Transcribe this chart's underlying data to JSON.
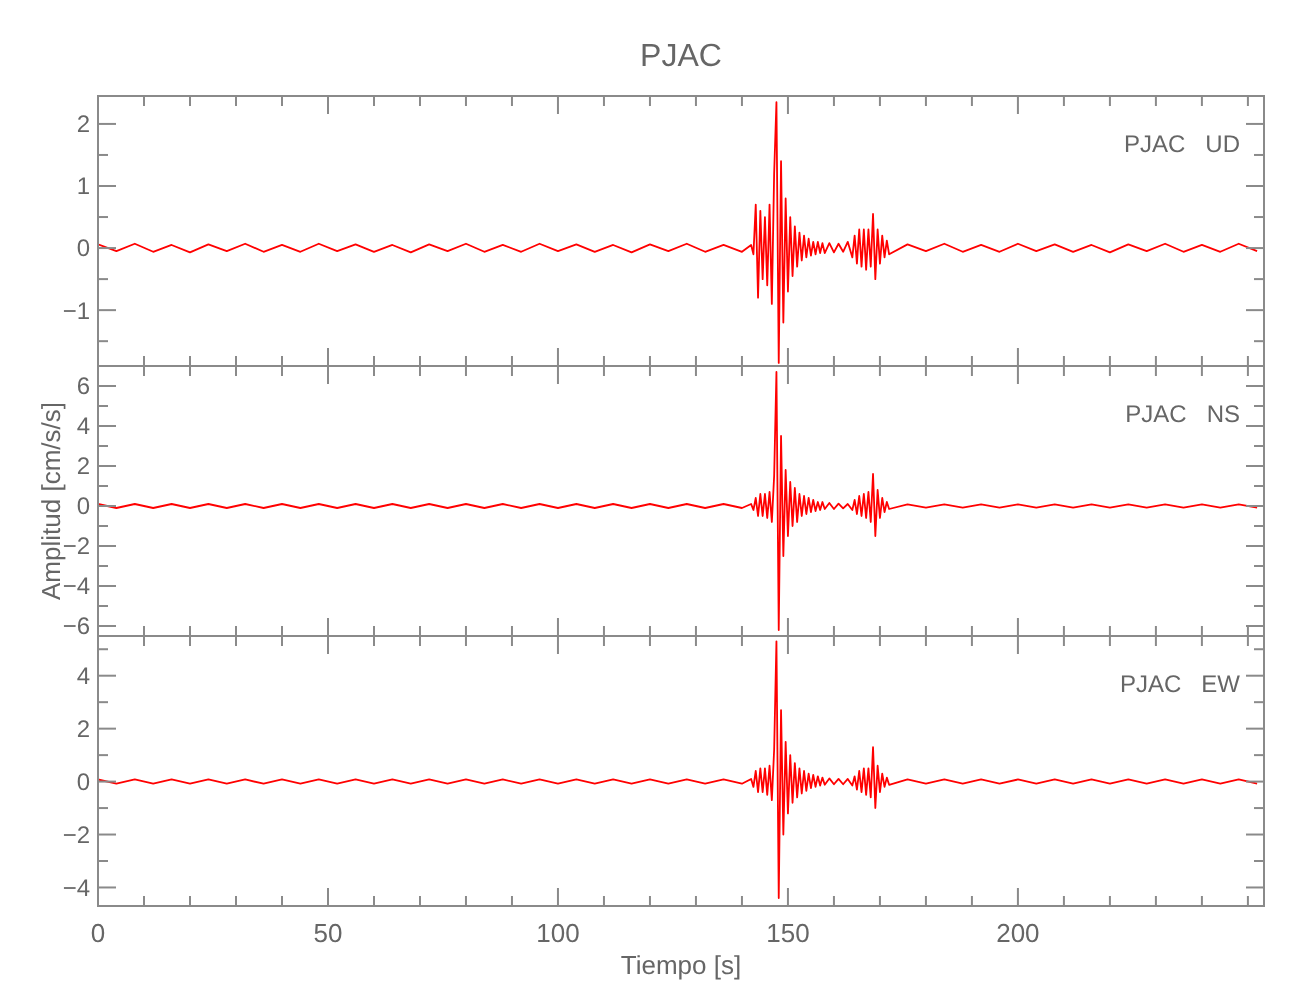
{
  "chart_data": [
    {
      "type": "line",
      "title": "PJAC",
      "annotations": [
        "PJAC   UD"
      ],
      "tick_labels": "y",
      "xlim": [
        0,
        253.5
      ],
      "xticks": [
        0,
        {
          "value": 10,
          "label": null
        },
        {
          "value": 20,
          "label": null
        },
        {
          "value": 30,
          "label": null
        },
        {
          "value": 40,
          "label": null
        },
        50,
        {
          "value": 60,
          "label": null
        },
        {
          "value": 70,
          "label": null
        },
        {
          "value": 80,
          "label": null
        },
        {
          "value": 90,
          "label": null
        },
        100,
        {
          "value": 110,
          "label": null
        },
        {
          "value": 120,
          "label": null
        },
        {
          "value": 130,
          "label": null
        },
        {
          "value": 140,
          "label": null
        },
        150,
        {
          "value": 160,
          "label": null
        },
        {
          "value": 170,
          "label": null
        },
        {
          "value": 180,
          "label": null
        },
        {
          "value": 190,
          "label": null
        },
        200,
        {
          "value": 210,
          "label": null
        },
        {
          "value": 220,
          "label": null
        },
        {
          "value": 230,
          "label": null
        },
        {
          "value": 240,
          "label": null
        },
        {
          "value": 250,
          "label": null
        }
      ],
      "ylim": [
        -1.9,
        2.45
      ],
      "yticks": [
        {
          "value": -1.5,
          "label": null
        },
        -1,
        {
          "value": -0.5,
          "label": null
        },
        0,
        {
          "value": 0.5,
          "label": null
        },
        1,
        {
          "value": 1.5,
          "label": null
        },
        2
      ],
      "x": [
        0,
        4,
        8,
        12,
        16,
        20,
        24,
        28,
        32,
        36,
        40,
        44,
        48,
        52,
        56,
        60,
        64,
        68,
        72,
        76,
        80,
        84,
        88,
        92,
        96,
        100,
        104,
        108,
        112,
        116,
        120,
        124,
        128,
        132,
        136,
        140,
        142,
        142.5,
        143,
        143.5,
        144,
        144.5,
        145,
        145.5,
        146,
        146.5,
        147,
        147.5,
        148,
        148.5,
        149,
        149.5,
        150,
        150.5,
        151,
        151.5,
        152,
        152.5,
        153,
        153.5,
        154,
        154.5,
        155,
        155.5,
        156,
        156.5,
        157,
        157.5,
        158,
        159,
        160,
        161,
        162,
        163,
        164,
        164.5,
        165,
        165.5,
        166,
        166.5,
        167,
        167.5,
        168,
        168.5,
        169,
        169.5,
        170,
        170.5,
        171,
        171.5,
        172,
        176,
        180,
        184,
        188,
        192,
        196,
        200,
        204,
        208,
        212,
        216,
        220,
        224,
        228,
        232,
        236,
        240,
        244,
        248,
        252
      ],
      "series": [
        {
          "color": "#ff0000",
          "values": [
            0.06,
            -0.05,
            0.07,
            -0.06,
            0.05,
            -0.07,
            0.06,
            -0.05,
            0.07,
            -0.06,
            0.05,
            -0.06,
            0.07,
            -0.05,
            0.06,
            -0.06,
            0.05,
            -0.07,
            0.06,
            -0.05,
            0.07,
            -0.06,
            0.05,
            -0.06,
            0.07,
            -0.05,
            0.06,
            -0.06,
            0.05,
            -0.07,
            0.06,
            -0.05,
            0.07,
            -0.06,
            0.05,
            -0.06,
            0.05,
            -0.1,
            0.7,
            -0.8,
            0.6,
            -0.5,
            0.5,
            -0.6,
            0.7,
            -0.9,
            1.2,
            2.35,
            -1.85,
            1.4,
            -1.2,
            0.8,
            -0.7,
            0.5,
            -0.45,
            0.35,
            -0.3,
            0.25,
            -0.2,
            0.2,
            -0.15,
            0.15,
            -0.12,
            0.1,
            -0.1,
            0.1,
            -0.08,
            0.08,
            -0.08,
            0.08,
            -0.07,
            0.07,
            -0.06,
            0.1,
            -0.15,
            0.2,
            -0.25,
            0.3,
            -0.3,
            0.3,
            -0.35,
            0.3,
            -0.3,
            0.55,
            -0.5,
            0.3,
            -0.25,
            0.2,
            -0.15,
            0.12,
            -0.1,
            0.06,
            -0.05,
            0.07,
            -0.06,
            0.05,
            -0.06,
            0.07,
            -0.05,
            0.06,
            -0.06,
            0.05,
            -0.07,
            0.06,
            -0.05,
            0.07,
            -0.06,
            0.05,
            -0.06,
            0.07,
            -0.05
          ]
        }
      ]
    },
    {
      "type": "line",
      "ylabel": "Amplitud [cm/s/s]",
      "annotations": [
        "PJAC   NS"
      ],
      "tick_labels": "y",
      "xlim": [
        0,
        253.5
      ],
      "xticks": [
        0,
        {
          "value": 10,
          "label": null
        },
        {
          "value": 20,
          "label": null
        },
        {
          "value": 30,
          "label": null
        },
        {
          "value": 40,
          "label": null
        },
        50,
        {
          "value": 60,
          "label": null
        },
        {
          "value": 70,
          "label": null
        },
        {
          "value": 80,
          "label": null
        },
        {
          "value": 90,
          "label": null
        },
        100,
        {
          "value": 110,
          "label": null
        },
        {
          "value": 120,
          "label": null
        },
        {
          "value": 130,
          "label": null
        },
        {
          "value": 140,
          "label": null
        },
        150,
        {
          "value": 160,
          "label": null
        },
        {
          "value": 170,
          "label": null
        },
        {
          "value": 180,
          "label": null
        },
        {
          "value": 190,
          "label": null
        },
        200,
        {
          "value": 210,
          "label": null
        },
        {
          "value": 220,
          "label": null
        },
        {
          "value": 230,
          "label": null
        },
        {
          "value": 240,
          "label": null
        },
        {
          "value": 250,
          "label": null
        }
      ],
      "ylim": [
        -6.5,
        7
      ],
      "yticks": [
        -6,
        {
          "value": -5,
          "label": null
        },
        -4,
        {
          "value": -3,
          "label": null
        },
        -2,
        {
          "value": -1,
          "label": null
        },
        0,
        {
          "value": 1,
          "label": null
        },
        2,
        {
          "value": 3,
          "label": null
        },
        4,
        {
          "value": 5,
          "label": null
        },
        6
      ],
      "x": [
        0,
        4,
        8,
        12,
        16,
        20,
        24,
        28,
        32,
        36,
        40,
        44,
        48,
        52,
        56,
        60,
        64,
        68,
        72,
        76,
        80,
        84,
        88,
        92,
        96,
        100,
        104,
        108,
        112,
        116,
        120,
        124,
        128,
        132,
        136,
        140,
        142,
        142.5,
        143,
        143.5,
        144,
        144.5,
        145,
        145.5,
        146,
        146.5,
        147,
        147.5,
        148,
        148.5,
        149,
        149.5,
        150,
        150.5,
        151,
        151.5,
        152,
        152.5,
        153,
        153.5,
        154,
        154.5,
        155,
        155.5,
        156,
        156.5,
        157,
        157.5,
        158,
        159,
        160,
        161,
        162,
        163,
        164,
        164.5,
        165,
        165.5,
        166,
        166.5,
        167,
        167.5,
        168,
        168.5,
        169,
        169.5,
        170,
        170.5,
        171,
        171.5,
        172,
        176,
        180,
        184,
        188,
        192,
        196,
        200,
        204,
        208,
        212,
        216,
        220,
        224,
        228,
        232,
        236,
        240,
        244,
        248,
        252
      ],
      "series": [
        {
          "color": "#ff0000",
          "values": [
            0.1,
            -0.1,
            0.1,
            -0.1,
            0.1,
            -0.1,
            0.1,
            -0.1,
            0.1,
            -0.1,
            0.1,
            -0.1,
            0.1,
            -0.1,
            0.1,
            -0.1,
            0.1,
            -0.1,
            0.1,
            -0.1,
            0.1,
            -0.1,
            0.1,
            -0.1,
            0.1,
            -0.1,
            0.1,
            -0.1,
            0.1,
            -0.1,
            0.1,
            -0.1,
            0.1,
            -0.1,
            0.1,
            -0.1,
            0.1,
            -0.2,
            0.4,
            -0.5,
            0.6,
            -0.5,
            0.6,
            -0.6,
            0.7,
            -0.8,
            1.5,
            6.7,
            -6.2,
            3.5,
            -2.5,
            1.8,
            -1.5,
            1.2,
            -1.0,
            0.9,
            -0.8,
            0.6,
            -0.5,
            0.5,
            -0.4,
            0.4,
            -0.3,
            0.3,
            -0.25,
            0.2,
            -0.2,
            0.2,
            -0.15,
            0.15,
            -0.15,
            0.12,
            -0.12,
            0.1,
            -0.2,
            0.3,
            -0.4,
            0.5,
            -0.5,
            0.6,
            -0.6,
            0.7,
            -0.8,
            1.6,
            -1.5,
            0.8,
            -0.6,
            0.4,
            -0.3,
            0.2,
            -0.15,
            0.08,
            -0.08,
            0.08,
            -0.08,
            0.08,
            -0.08,
            0.08,
            -0.08,
            0.08,
            -0.08,
            0.08,
            -0.08,
            0.08,
            -0.08,
            0.08,
            -0.08,
            0.08,
            -0.08,
            0.08,
            -0.08
          ]
        }
      ]
    },
    {
      "type": "line",
      "xlabel": "Tiempo [s]",
      "annotations": [
        "PJAC   EW"
      ],
      "xlim": [
        0,
        253.5
      ],
      "xticks": [
        0,
        {
          "value": 10,
          "label": null
        },
        {
          "value": 20,
          "label": null
        },
        {
          "value": 30,
          "label": null
        },
        {
          "value": 40,
          "label": null
        },
        50,
        {
          "value": 60,
          "label": null
        },
        {
          "value": 70,
          "label": null
        },
        {
          "value": 80,
          "label": null
        },
        {
          "value": 90,
          "label": null
        },
        100,
        {
          "value": 110,
          "label": null
        },
        {
          "value": 120,
          "label": null
        },
        {
          "value": 130,
          "label": null
        },
        {
          "value": 140,
          "label": null
        },
        150,
        {
          "value": 160,
          "label": null
        },
        {
          "value": 170,
          "label": null
        },
        {
          "value": 180,
          "label": null
        },
        {
          "value": 190,
          "label": null
        },
        200,
        {
          "value": 210,
          "label": null
        },
        {
          "value": 220,
          "label": null
        },
        {
          "value": 230,
          "label": null
        },
        {
          "value": 240,
          "label": null
        },
        {
          "value": 250,
          "label": null
        }
      ],
      "ylim": [
        -4.7,
        5.5
      ],
      "yticks": [
        -4,
        {
          "value": -3,
          "label": null
        },
        -2,
        {
          "value": -1,
          "label": null
        },
        0,
        {
          "value": 1,
          "label": null
        },
        2,
        {
          "value": 3,
          "label": null
        },
        4,
        {
          "value": 5,
          "label": null
        }
      ],
      "x": [
        0,
        4,
        8,
        12,
        16,
        20,
        24,
        28,
        32,
        36,
        40,
        44,
        48,
        52,
        56,
        60,
        64,
        68,
        72,
        76,
        80,
        84,
        88,
        92,
        96,
        100,
        104,
        108,
        112,
        116,
        120,
        124,
        128,
        132,
        136,
        140,
        142,
        142.5,
        143,
        143.5,
        144,
        144.5,
        145,
        145.5,
        146,
        146.5,
        147,
        147.5,
        148,
        148.5,
        149,
        149.5,
        150,
        150.5,
        151,
        151.5,
        152,
        152.5,
        153,
        153.5,
        154,
        154.5,
        155,
        155.5,
        156,
        156.5,
        157,
        157.5,
        158,
        159,
        160,
        161,
        162,
        163,
        164,
        164.5,
        165,
        165.5,
        166,
        166.5,
        167,
        167.5,
        168,
        168.5,
        169,
        169.5,
        170,
        170.5,
        171,
        171.5,
        172,
        176,
        180,
        184,
        188,
        192,
        196,
        200,
        204,
        208,
        212,
        216,
        220,
        224,
        228,
        232,
        236,
        240,
        244,
        248,
        252
      ],
      "series": [
        {
          "color": "#ff0000",
          "values": [
            0.08,
            -0.08,
            0.08,
            -0.08,
            0.08,
            -0.08,
            0.08,
            -0.08,
            0.08,
            -0.08,
            0.08,
            -0.08,
            0.08,
            -0.08,
            0.08,
            -0.08,
            0.08,
            -0.08,
            0.08,
            -0.08,
            0.08,
            -0.08,
            0.08,
            -0.08,
            0.08,
            -0.08,
            0.08,
            -0.08,
            0.08,
            -0.08,
            0.08,
            -0.08,
            0.08,
            -0.08,
            0.08,
            -0.08,
            0.1,
            -0.2,
            0.4,
            -0.4,
            0.5,
            -0.4,
            0.5,
            -0.5,
            0.6,
            -0.7,
            1.2,
            5.3,
            -4.4,
            2.7,
            -2.0,
            1.5,
            -1.2,
            1.0,
            -0.8,
            0.7,
            -0.6,
            0.5,
            -0.45,
            0.4,
            -0.35,
            0.3,
            -0.25,
            0.25,
            -0.2,
            0.2,
            -0.15,
            0.15,
            -0.12,
            0.12,
            -0.1,
            0.1,
            -0.1,
            0.1,
            -0.15,
            0.2,
            -0.3,
            0.4,
            -0.4,
            0.5,
            -0.5,
            0.5,
            -0.6,
            1.3,
            -1.0,
            0.6,
            -0.4,
            0.3,
            -0.2,
            0.15,
            -0.12,
            0.08,
            -0.08,
            0.08,
            -0.08,
            0.08,
            -0.08,
            0.08,
            -0.08,
            0.08,
            -0.08,
            0.08,
            -0.08,
            0.08,
            -0.08,
            0.08,
            -0.08,
            0.08,
            -0.08,
            0.08,
            -0.08
          ]
        }
      ]
    }
  ]
}
